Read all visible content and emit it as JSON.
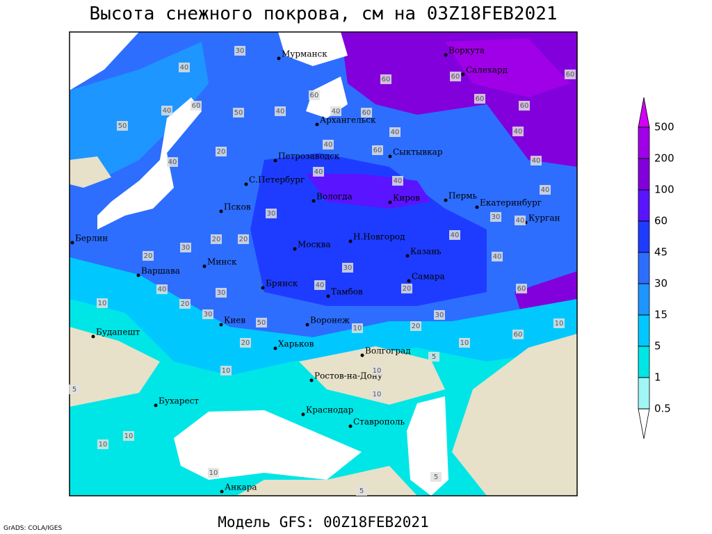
{
  "header": {
    "title": "Высота снежного покрова, см на 03Z18FEB2021"
  },
  "footer": {
    "model": "Модель GFS: 00Z18FEB2021",
    "credit": "GrADS: COLA/IGES"
  },
  "cities": [
    "Мурманск",
    "Воркута",
    "Салехард",
    "Архангельск",
    "Петрозаводск",
    "Сыктывкар",
    "С.Петербург",
    "Вологда",
    "Киров",
    "Пермь",
    "Екатеринбург",
    "Курган",
    "Псков",
    "Берлин",
    "Н.Новгород",
    "Москва",
    "Казань",
    "Минск",
    "Варшава",
    "Самара",
    "Брянск",
    "Тамбов",
    "Киев",
    "Воронеж",
    "Будапешт",
    "Харьков",
    "Волгоград",
    "Ростов-на-Дону",
    "Бухарест",
    "Краснодар",
    "Ставрополь",
    "Анкара"
  ],
  "contour_labels": [
    30,
    40,
    50,
    60,
    40,
    50,
    40,
    60,
    40,
    60,
    40,
    60,
    60,
    60,
    60,
    40,
    40,
    60,
    20,
    40,
    60,
    40,
    40,
    40,
    30,
    20,
    20,
    20,
    30,
    20,
    30,
    40,
    10,
    30,
    50,
    20,
    30,
    40,
    20,
    30,
    20,
    10,
    10,
    10,
    60,
    60,
    40,
    30,
    40,
    40,
    40,
    10,
    5,
    10,
    10,
    5,
    10,
    10,
    5,
    10,
    5
  ],
  "legend": {
    "levels": [
      500,
      200,
      100,
      60,
      45,
      30,
      15,
      5,
      1,
      0.5
    ],
    "colors": [
      "#d200f5",
      "#a000e8",
      "#8200dc",
      "#5a14ff",
      "#1e3cff",
      "#2d6eff",
      "#1e96ff",
      "#00c8ff",
      "#00e6e6",
      "#a0f5f5",
      "#ffffff"
    ]
  }
}
